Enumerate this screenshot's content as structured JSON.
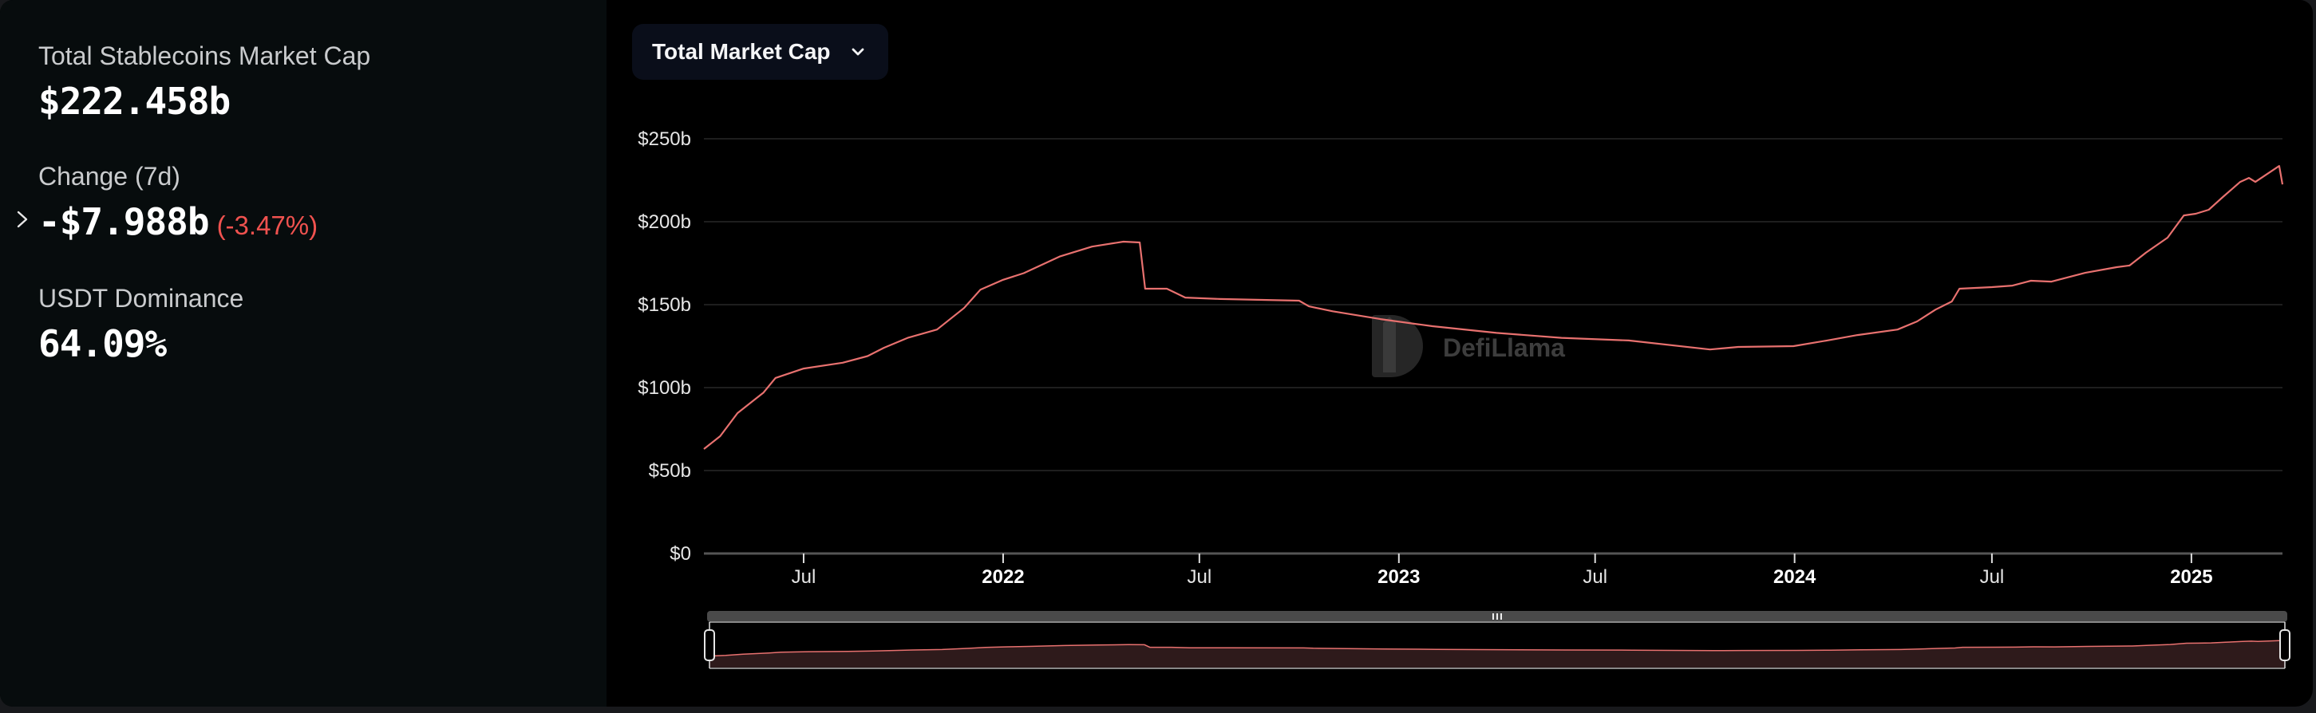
{
  "stats": {
    "total_label": "Total Stablecoins Market Cap",
    "total_value": "$222.458b",
    "change_label": "Change (7d)",
    "change_value": "-$7.988b",
    "change_pct": "(-3.47%)",
    "dominance_label": "USDT Dominance",
    "dominance_value": "64.09%"
  },
  "controls": {
    "metric_dropdown_label": "Total Market Cap",
    "metric_dropdown_icon": "chevron-down-icon",
    "expand_icon": "chevron-right-icon"
  },
  "watermark": {
    "text": "DefiLlama"
  },
  "colors": {
    "line": "#e8716f",
    "area_nav": "#2e1a1b",
    "negative": "#f0524f",
    "panel_bg": "#070c0d",
    "chart_bg": "#000000"
  },
  "chart_data": {
    "type": "line",
    "title": "Total Market Cap",
    "xlabel": "",
    "ylabel": "",
    "ylim": [
      0,
      250
    ],
    "y_unit": "USD billions",
    "y_ticks": [
      "$0",
      "$50b",
      "$100b",
      "$150b",
      "$200b",
      "$250b"
    ],
    "y_tick_values": [
      0,
      50,
      100,
      150,
      200,
      250
    ],
    "x_ticks": [
      {
        "label": "Jul",
        "year": false,
        "date": "2021-07"
      },
      {
        "label": "2022",
        "year": true,
        "date": "2022-01"
      },
      {
        "label": "Jul",
        "year": false,
        "date": "2022-07"
      },
      {
        "label": "2023",
        "year": true,
        "date": "2023-01"
      },
      {
        "label": "Jul",
        "year": false,
        "date": "2023-07"
      },
      {
        "label": "2024",
        "year": true,
        "date": "2024-01"
      },
      {
        "label": "Jul",
        "year": false,
        "date": "2024-07"
      },
      {
        "label": "2025",
        "year": true,
        "date": "2025-01"
      }
    ],
    "x_range": [
      "2021-03-31",
      "2025-03-26"
    ],
    "grid": true,
    "legend": null,
    "series": [
      {
        "name": "Total Stablecoins Market Cap",
        "x": [
          "2021-03-31",
          "2021-04-15",
          "2021-05-01",
          "2021-05-25",
          "2021-06-05",
          "2021-07-01",
          "2021-08-06",
          "2021-08-29",
          "2021-09-13",
          "2021-10-05",
          "2021-11-01",
          "2021-11-26",
          "2021-12-11",
          "2022-01-01",
          "2022-01-20",
          "2022-02-22",
          "2022-03-24",
          "2022-04-22",
          "2022-05-07",
          "2022-05-12",
          "2022-06-01",
          "2022-06-18",
          "2022-07-20",
          "2022-10-01",
          "2022-10-10",
          "2022-11-01",
          "2022-12-15",
          "2023-02-01",
          "2023-04-01",
          "2023-05-31",
          "2023-08-01",
          "2023-10-15",
          "2023-11-10",
          "2023-12-31",
          "2024-01-31",
          "2024-02-28",
          "2024-04-05",
          "2024-04-23",
          "2024-05-10",
          "2024-05-25",
          "2024-06-01",
          "2024-07-01",
          "2024-07-20",
          "2024-08-06",
          "2024-08-25",
          "2024-09-25",
          "2024-10-24",
          "2024-11-05",
          "2024-11-20",
          "2024-12-10",
          "2024-12-25",
          "2025-01-05",
          "2025-01-17",
          "2025-01-30",
          "2025-02-15",
          "2025-02-23",
          "2025-03-01",
          "2025-03-23",
          "2025-03-26"
        ],
        "values": [
          63,
          70.7,
          84.6,
          97,
          105.8,
          111.5,
          115,
          119,
          124,
          130,
          135,
          148,
          159,
          165,
          169,
          179,
          185,
          188,
          187.5,
          159.6,
          159.6,
          154.3,
          153.4,
          152.4,
          149,
          146,
          141.3,
          137,
          133,
          130,
          128.4,
          123,
          124.5,
          125,
          128.4,
          131.7,
          135,
          139.9,
          147,
          151.9,
          159.6,
          160.6,
          161.5,
          164.4,
          163.9,
          169.2,
          172.6,
          173.6,
          181.3,
          190.4,
          203.8,
          204.8,
          207.2,
          214.9,
          224,
          226.4,
          224,
          233.6,
          222.5
        ]
      }
    ]
  }
}
